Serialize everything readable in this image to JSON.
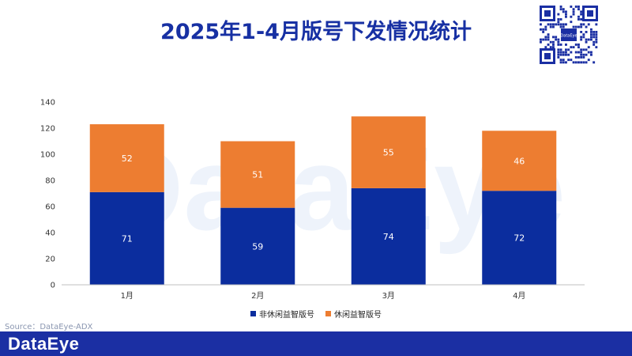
{
  "title": "2025年1-4月版号下发情况统计",
  "qr_logo": "DataEye",
  "watermark": "DataEye",
  "source": "Source：DataEye-ADX",
  "footer_logo": "DataEye",
  "colors": {
    "title": "#1730a3",
    "non_casual": "#0b2d9e",
    "casual": "#ed7d31",
    "footer": "#1b2fa3"
  },
  "chart_data": {
    "type": "bar",
    "stacked": true,
    "categories": [
      "1月",
      "2月",
      "3月",
      "4月"
    ],
    "series": [
      {
        "name": "非休闲益智版号",
        "values": [
          71,
          59,
          74,
          72
        ],
        "color": "#0b2d9e"
      },
      {
        "name": "休闲益智版号",
        "values": [
          52,
          51,
          55,
          46
        ],
        "color": "#ed7d31"
      }
    ],
    "yticks": [
      0,
      20,
      40,
      60,
      80,
      100,
      120,
      140
    ],
    "ylim": [
      0,
      140
    ],
    "xlabel": "",
    "ylabel": "",
    "grid": false,
    "legend": "bottom"
  }
}
